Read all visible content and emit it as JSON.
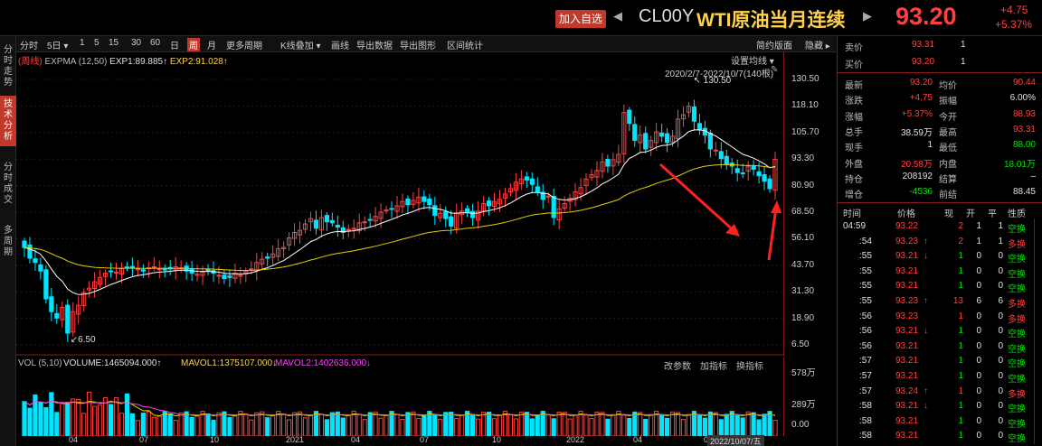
{
  "header": {
    "add_favorite": "加入自选",
    "prev_glyph": "◀",
    "next_glyph": "▶",
    "symbol_code": "CL00Y",
    "symbol_name": "WTI原油当月连续",
    "last_price": "93.20",
    "change_abs": "+4.75",
    "change_pct": "+5.37%"
  },
  "side_tabs": [
    {
      "label": "分时走势",
      "active": false
    },
    {
      "label": "技术分析",
      "active": true
    },
    {
      "label": "分时成交",
      "active": false
    },
    {
      "label": "多周期",
      "active": false
    }
  ],
  "toolbar": {
    "items": [
      "分时",
      "5日 ▾",
      "1",
      "5",
      "15",
      "30",
      "60",
      "日",
      "周",
      "月",
      "更多周期",
      "K线叠加 ▾",
      "画线",
      "导出数据",
      "导出图形",
      "区间统计"
    ],
    "active_index": 8,
    "right_items": [
      "简约版面",
      "隐藏 ▸"
    ]
  },
  "chart_header": {
    "period_tag": "(周线)",
    "indicator": "EXPMA (12,50)",
    "exp1": "EXP1:89.885↑",
    "exp2": "EXP2:91.028↑",
    "set_ma": "设置均线 ▾",
    "range": "2020/2/7-2022/10/7(140根)"
  },
  "price_axis": [
    "130.50",
    "118.10",
    "105.70",
    "93.30",
    "80.90",
    "68.50",
    "56.10",
    "43.70",
    "31.30",
    "18.90",
    "6.50"
  ],
  "annotations": {
    "high": "130.50",
    "low": "6.50"
  },
  "volume_header": {
    "label": "VOL (5,10)",
    "volume": "VOLUME:1465094.000↑",
    "mavol1": "MAVOL1:1375107.000↓",
    "mavol2": "MAVOL2:1402636.000↓",
    "buttons": [
      "改参数",
      "加指标",
      "换指标"
    ]
  },
  "volume_axis": [
    "578万",
    "289万",
    "0.00"
  ],
  "time_axis": [
    "04",
    "07",
    "10",
    "2021",
    "04",
    "07",
    "10",
    "2022",
    "04",
    "07"
  ],
  "time_cursor": "2022/10/07/五",
  "quote": {
    "ask": {
      "label": "卖价",
      "price": "93.31",
      "qty": "1"
    },
    "bid": {
      "label": "买价",
      "price": "93.20",
      "qty": "1"
    },
    "rows": [
      {
        "l1": "最新",
        "v1": "93.20",
        "c1": "red",
        "l2": "均价",
        "v2": "90.44",
        "c2": "red"
      },
      {
        "l1": "涨跌",
        "v1": "+4.75",
        "c1": "red",
        "l2": "振幅",
        "v2": "6.00%",
        "c2": "white"
      },
      {
        "l1": "涨幅",
        "v1": "+5.37%",
        "c1": "red",
        "l2": "今开",
        "v2": "88.93",
        "c2": "red"
      },
      {
        "l1": "总手",
        "v1": "38.59万",
        "c1": "white",
        "l2": "最高",
        "v2": "93.31",
        "c2": "red"
      },
      {
        "l1": "现手",
        "v1": "1",
        "c1": "white",
        "l2": "最低",
        "v2": "88.00",
        "c2": "green"
      },
      {
        "l1": "外盘",
        "v1": "20.58万",
        "c1": "red",
        "l2": "内盘",
        "v2": "18.01万",
        "c2": "green"
      },
      {
        "l1": "持仓",
        "v1": "208192",
        "c1": "white",
        "l2": "结算",
        "v2": "–",
        "c2": "white"
      },
      {
        "l1": "增仓",
        "v1": "-4536",
        "c1": "green",
        "l2": "前结",
        "v2": "88.45",
        "c2": "white"
      }
    ]
  },
  "ticks_header": [
    "时间",
    "价格",
    "现",
    "开",
    "平",
    "性质"
  ],
  "ticks": [
    {
      "time": "04:59",
      "price": "93.22",
      "arrow": "",
      "now": "2",
      "open": "1",
      "close": "1",
      "nature": "空换",
      "pc": "red",
      "nc": "red",
      "tc": "green"
    },
    {
      "time": ":54",
      "price": "93.23",
      "arrow": "↑",
      "now": "2",
      "open": "1",
      "close": "1",
      "nature": "多换",
      "pc": "red",
      "nc": "red",
      "tc": "red"
    },
    {
      "time": ":55",
      "price": "93.21",
      "arrow": "↓",
      "now": "1",
      "open": "0",
      "close": "0",
      "nature": "空换",
      "pc": "red",
      "nc": "green",
      "tc": "green"
    },
    {
      "time": ":55",
      "price": "93.21",
      "arrow": "",
      "now": "1",
      "open": "0",
      "close": "0",
      "nature": "空换",
      "pc": "red",
      "nc": "green",
      "tc": "green"
    },
    {
      "time": ":55",
      "price": "93.21",
      "arrow": "",
      "now": "1",
      "open": "0",
      "close": "0",
      "nature": "空换",
      "pc": "red",
      "nc": "green",
      "tc": "green"
    },
    {
      "time": ":55",
      "price": "93.23",
      "arrow": "↑",
      "now": "13",
      "open": "6",
      "close": "6",
      "nature": "多换",
      "pc": "red",
      "nc": "red",
      "tc": "red"
    },
    {
      "time": ":56",
      "price": "93.23",
      "arrow": "",
      "now": "1",
      "open": "0",
      "close": "0",
      "nature": "多换",
      "pc": "red",
      "nc": "red",
      "tc": "red"
    },
    {
      "time": ":56",
      "price": "93.21",
      "arrow": "↓",
      "now": "1",
      "open": "0",
      "close": "0",
      "nature": "空换",
      "pc": "red",
      "nc": "green",
      "tc": "green"
    },
    {
      "time": ":56",
      "price": "93.21",
      "arrow": "",
      "now": "1",
      "open": "0",
      "close": "0",
      "nature": "空换",
      "pc": "red",
      "nc": "green",
      "tc": "green"
    },
    {
      "time": ":57",
      "price": "93.21",
      "arrow": "",
      "now": "1",
      "open": "0",
      "close": "0",
      "nature": "空换",
      "pc": "red",
      "nc": "green",
      "tc": "green"
    },
    {
      "time": ":57",
      "price": "93.21",
      "arrow": "",
      "now": "1",
      "open": "0",
      "close": "0",
      "nature": "空换",
      "pc": "red",
      "nc": "green",
      "tc": "green"
    },
    {
      "time": ":57",
      "price": "93.24",
      "arrow": "↑",
      "now": "1",
      "open": "0",
      "close": "0",
      "nature": "多换",
      "pc": "red",
      "nc": "red",
      "tc": "red"
    },
    {
      "time": ":58",
      "price": "93.21",
      "arrow": "↓",
      "now": "1",
      "open": "0",
      "close": "0",
      "nature": "空换",
      "pc": "red",
      "nc": "green",
      "tc": "green"
    },
    {
      "time": ":58",
      "price": "93.21",
      "arrow": "",
      "now": "1",
      "open": "0",
      "close": "0",
      "nature": "空换",
      "pc": "red",
      "nc": "green",
      "tc": "green"
    },
    {
      "time": ":58",
      "price": "93.21",
      "arrow": "",
      "now": "1",
      "open": "0",
      "close": "0",
      "nature": "空换",
      "pc": "red",
      "nc": "green",
      "tc": "green"
    }
  ],
  "colors": {
    "up": "#ff4040",
    "down": "#00e5ff",
    "exp1": "#ffffff",
    "exp2": "#e6d200",
    "mavol1": "#e6d200",
    "mavol2": "#ff40ff",
    "accent": "#c0392b"
  },
  "chart_data": {
    "type": "candlestick",
    "period": "weekly",
    "range": "2020/2/7-2022/10/7",
    "bars": 140,
    "ylim": [
      6.5,
      130.5
    ],
    "high": 130.5,
    "low": 6.5,
    "close": [
      52.0,
      47.0,
      45.0,
      41.0,
      28.0,
      22.0,
      19.0,
      24.0,
      12.0,
      22.0,
      25.0,
      31.0,
      33.0,
      36.0,
      38.0,
      40.0,
      41.0,
      40.5,
      42.0,
      42.5,
      43.0,
      42.0,
      41.0,
      42.5,
      43.0,
      42.0,
      41.5,
      42.0,
      43.0,
      42.5,
      41.0,
      40.0,
      39.5,
      40.5,
      41.0,
      40.0,
      39.0,
      37.5,
      38.0,
      40.0,
      39.0,
      41.0,
      42.0,
      45.0,
      46.5,
      47.0,
      49.0,
      51.5,
      52.0,
      56.5,
      59.0,
      60.0,
      63.0,
      65.5,
      61.0,
      66.0,
      64.0,
      63.5,
      61.5,
      59.0,
      60.5,
      61.0,
      63.5,
      64.0,
      65.0,
      66.5,
      68.5,
      69.5,
      70.0,
      71.5,
      73.5,
      72.0,
      74.0,
      75.5,
      73.5,
      72.0,
      67.0,
      68.0,
      65.5,
      62.0,
      68.0,
      69.0,
      68.5,
      66.0,
      69.0,
      72.5,
      71.5,
      73.5,
      74.5,
      77.0,
      79.5,
      82.5,
      84.0,
      83.5,
      81.5,
      78.0,
      74.5,
      76.0,
      66.0,
      70.0,
      72.5,
      75.0,
      78.0,
      80.0,
      84.0,
      86.0,
      88.0,
      92.0,
      90.0,
      93.0,
      95.5,
      115.0,
      110.0,
      102.0,
      104.5,
      98.0,
      102.0,
      106.0,
      104.0,
      101.0,
      104.0,
      112.0,
      114.0,
      118.0,
      111.0,
      107.0,
      104.5,
      98.0,
      97.5,
      93.5,
      91.0,
      90.0,
      87.0,
      86.5,
      90.0,
      88.5,
      85.5,
      83.0,
      79.5,
      93.2
    ],
    "series": [
      {
        "name": "EXP1",
        "last": 89.885
      },
      {
        "name": "EXP2",
        "last": 91.028
      }
    ],
    "volume": {
      "unit": "万",
      "ylim": [
        0,
        578
      ],
      "last": 146.5094
    }
  }
}
